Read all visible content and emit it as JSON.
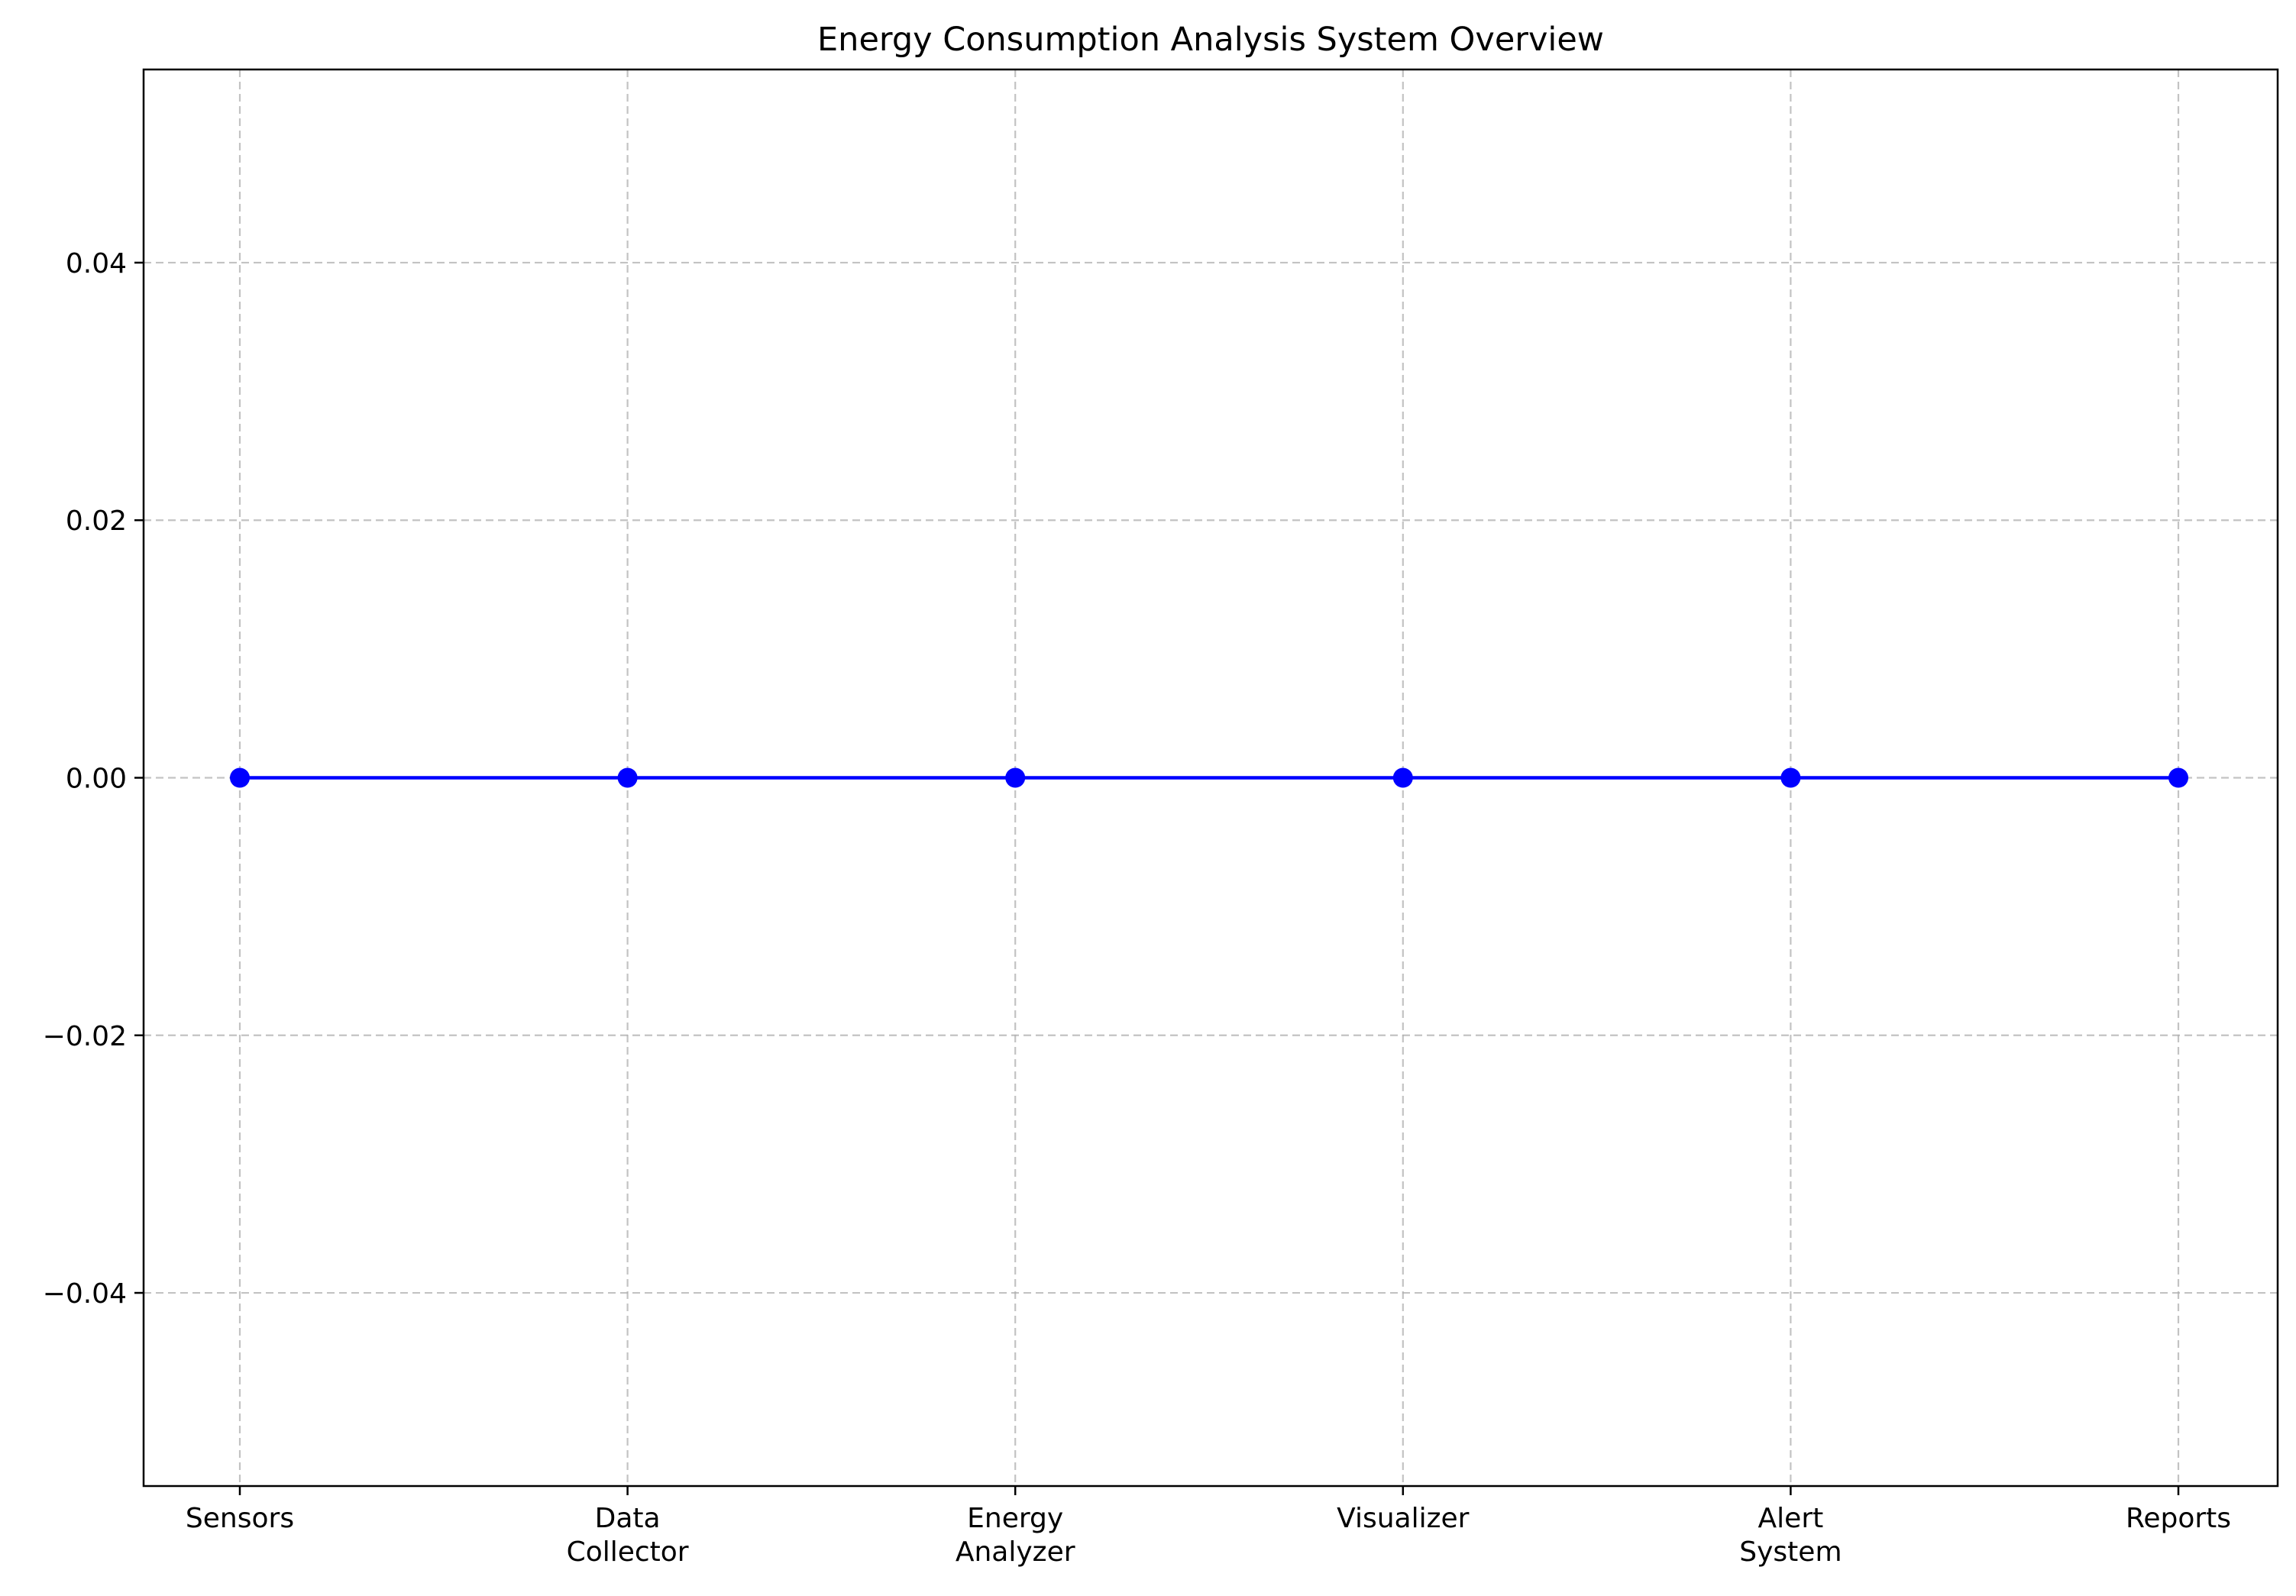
{
  "chart_data": {
    "type": "line",
    "title": "Energy Consumption Analysis System Overview",
    "xlabel": "",
    "ylabel": "",
    "categories": [
      "Sensors",
      "Data\nCollector",
      "Energy\nAnalyzer",
      "Visualizer",
      "Alert\nSystem",
      "Reports"
    ],
    "series": [
      {
        "values": [
          0,
          0,
          0,
          0,
          0,
          0
        ]
      }
    ],
    "ylim": [
      -0.055,
      0.055
    ],
    "yticks": [
      -0.04,
      -0.02,
      0.0,
      0.02,
      0.04
    ],
    "ytick_labels": [
      "−0.04",
      "−0.02",
      "0.00",
      "0.02",
      "0.04"
    ],
    "grid": true,
    "colors": {
      "line": "#0000ff",
      "marker": "#0000ff",
      "grid": "#b0b0b0"
    }
  }
}
